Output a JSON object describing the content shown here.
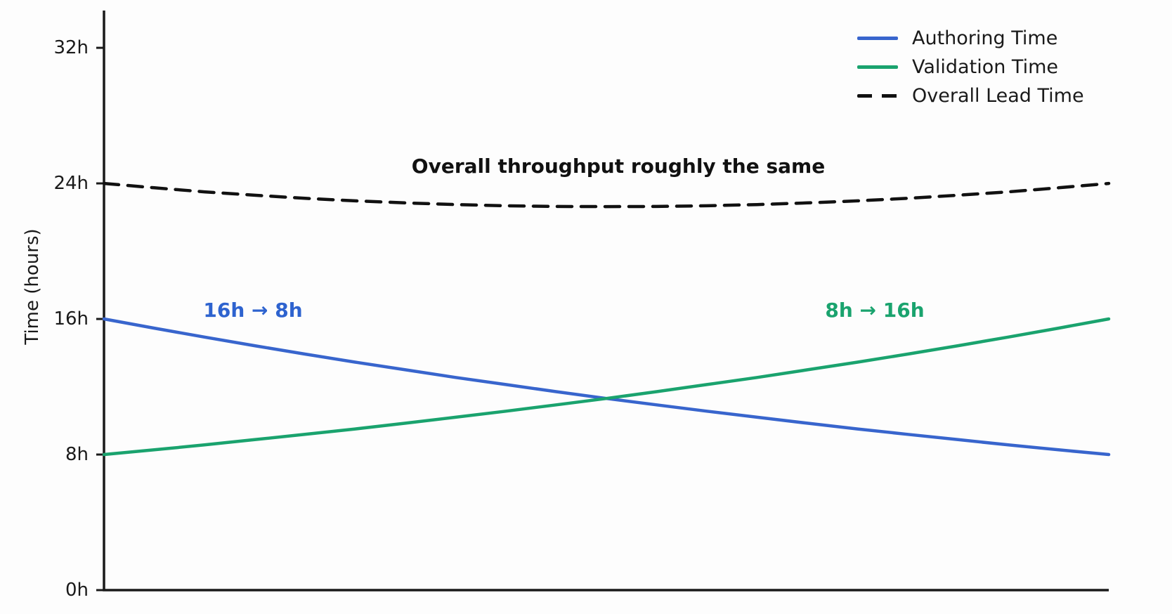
{
  "chart_data": {
    "type": "line",
    "title": "",
    "xlabel": "",
    "ylabel": "Time (hours)",
    "xlim": [
      0,
      1
    ],
    "ylim": [
      0,
      34.2
    ],
    "grid": false,
    "legend_position": "upper-right",
    "axis_color": "#1a1a1a",
    "background_color": "#fdfdfd",
    "x": [
      0,
      0.05,
      0.1,
      0.15,
      0.2,
      0.25,
      0.3,
      0.35,
      0.4,
      0.45,
      0.5,
      0.55,
      0.6,
      0.65,
      0.7,
      0.75,
      0.8,
      0.85,
      0.9,
      0.95,
      1
    ],
    "yticks": [
      {
        "value": 0,
        "label": "0h"
      },
      {
        "value": 8,
        "label": "8h"
      },
      {
        "value": 16,
        "label": "16h"
      },
      {
        "value": 24,
        "label": "24h"
      },
      {
        "value": 32,
        "label": "32h"
      }
    ],
    "series": [
      {
        "name": "Authoring Time",
        "color": "#3865cd",
        "dash": "solid",
        "start_value": 16,
        "end_value": 8,
        "values": [
          16,
          15.46,
          14.93,
          14.42,
          13.93,
          13.45,
          13.0,
          12.55,
          12.13,
          11.71,
          11.31,
          10.93,
          10.56,
          10.2,
          9.85,
          9.51,
          9.19,
          8.88,
          8.57,
          8.28,
          8
        ]
      },
      {
        "name": "Validation Time",
        "color": "#1aa36e",
        "dash": "solid",
        "start_value": 8,
        "end_value": 16,
        "values": [
          8,
          8.28,
          8.57,
          8.88,
          9.19,
          9.51,
          9.85,
          10.2,
          10.56,
          10.93,
          11.31,
          11.71,
          12.13,
          12.55,
          13.0,
          13.45,
          13.93,
          14.42,
          14.93,
          15.46,
          16
        ]
      },
      {
        "name": "Overall Lead Time",
        "color": "#111111",
        "dash": "dashed",
        "start_value": 24,
        "end_value": 24,
        "values": [
          24,
          23.74,
          23.5,
          23.3,
          23.12,
          22.97,
          22.85,
          22.75,
          22.68,
          22.64,
          22.63,
          22.64,
          22.68,
          22.75,
          22.85,
          22.97,
          23.12,
          23.3,
          23.5,
          23.74,
          24
        ]
      }
    ],
    "annotations": [
      {
        "id": "overall-throughput-note",
        "text": "Overall throughput roughly the same",
        "color": "#111111",
        "x": 0.512,
        "y": 25.0
      },
      {
        "id": "authoring-change",
        "text": "16h → 8h",
        "color": "#2e63cf",
        "x": 0.148,
        "y": 16.5
      },
      {
        "id": "validation-change",
        "text": "8h → 16h",
        "color": "#1aa36e",
        "x": 0.767,
        "y": 16.5
      }
    ]
  }
}
